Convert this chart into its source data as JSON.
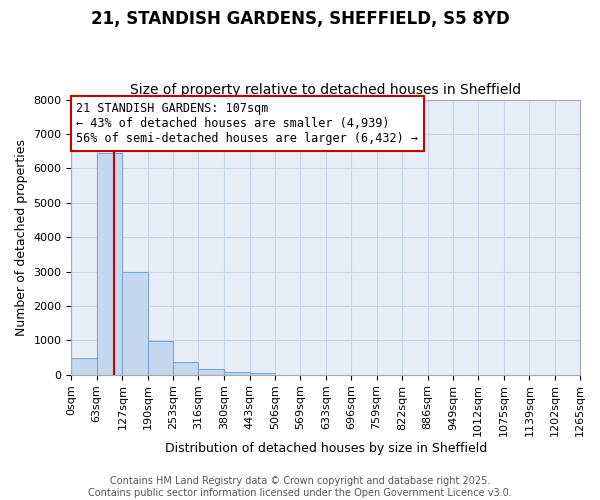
{
  "title": "21, STANDISH GARDENS, SHEFFIELD, S5 8YD",
  "subtitle": "Size of property relative to detached houses in Sheffield",
  "xlabel": "Distribution of detached houses by size in Sheffield",
  "ylabel": "Number of detached properties",
  "bar_color": "#c5d8f0",
  "bar_edge_color": "#7aaad0",
  "bin_width": 63,
  "bin_edges": [
    0,
    63,
    127,
    190,
    253,
    316,
    380,
    443,
    506,
    569,
    633,
    696,
    759,
    822,
    886,
    949,
    1012,
    1075,
    1139,
    1202,
    1265
  ],
  "bar_heights": [
    500,
    6450,
    2980,
    980,
    370,
    160,
    85,
    55,
    0,
    0,
    0,
    0,
    0,
    0,
    0,
    0,
    0,
    0,
    0,
    0
  ],
  "property_size": 107,
  "vline_color": "#cc0000",
  "annotation_line1": "21 STANDISH GARDENS: 107sqm",
  "annotation_line2": "← 43% of detached houses are smaller (4,939)",
  "annotation_line3": "56% of semi-detached houses are larger (6,432) →",
  "annotation_box_color": "#cc0000",
  "ylim": [
    0,
    8000
  ],
  "xlim": [
    0,
    1265
  ],
  "yticks": [
    0,
    1000,
    2000,
    3000,
    4000,
    5000,
    6000,
    7000,
    8000
  ],
  "xtick_labels": [
    "0sqm",
    "63sqm",
    "127sqm",
    "190sqm",
    "253sqm",
    "316sqm",
    "380sqm",
    "443sqm",
    "506sqm",
    "569sqm",
    "633sqm",
    "696sqm",
    "759sqm",
    "822sqm",
    "886sqm",
    "949sqm",
    "1012sqm",
    "1075sqm",
    "1139sqm",
    "1202sqm",
    "1265sqm"
  ],
  "grid_color": "#c8d4e8",
  "bg_color": "#e8eef8",
  "footer_line1": "Contains HM Land Registry data © Crown copyright and database right 2025.",
  "footer_line2": "Contains public sector information licensed under the Open Government Licence v3.0.",
  "title_fontsize": 12,
  "subtitle_fontsize": 10,
  "axis_label_fontsize": 9,
  "tick_fontsize": 8,
  "annotation_fontsize": 8.5,
  "footer_fontsize": 7
}
